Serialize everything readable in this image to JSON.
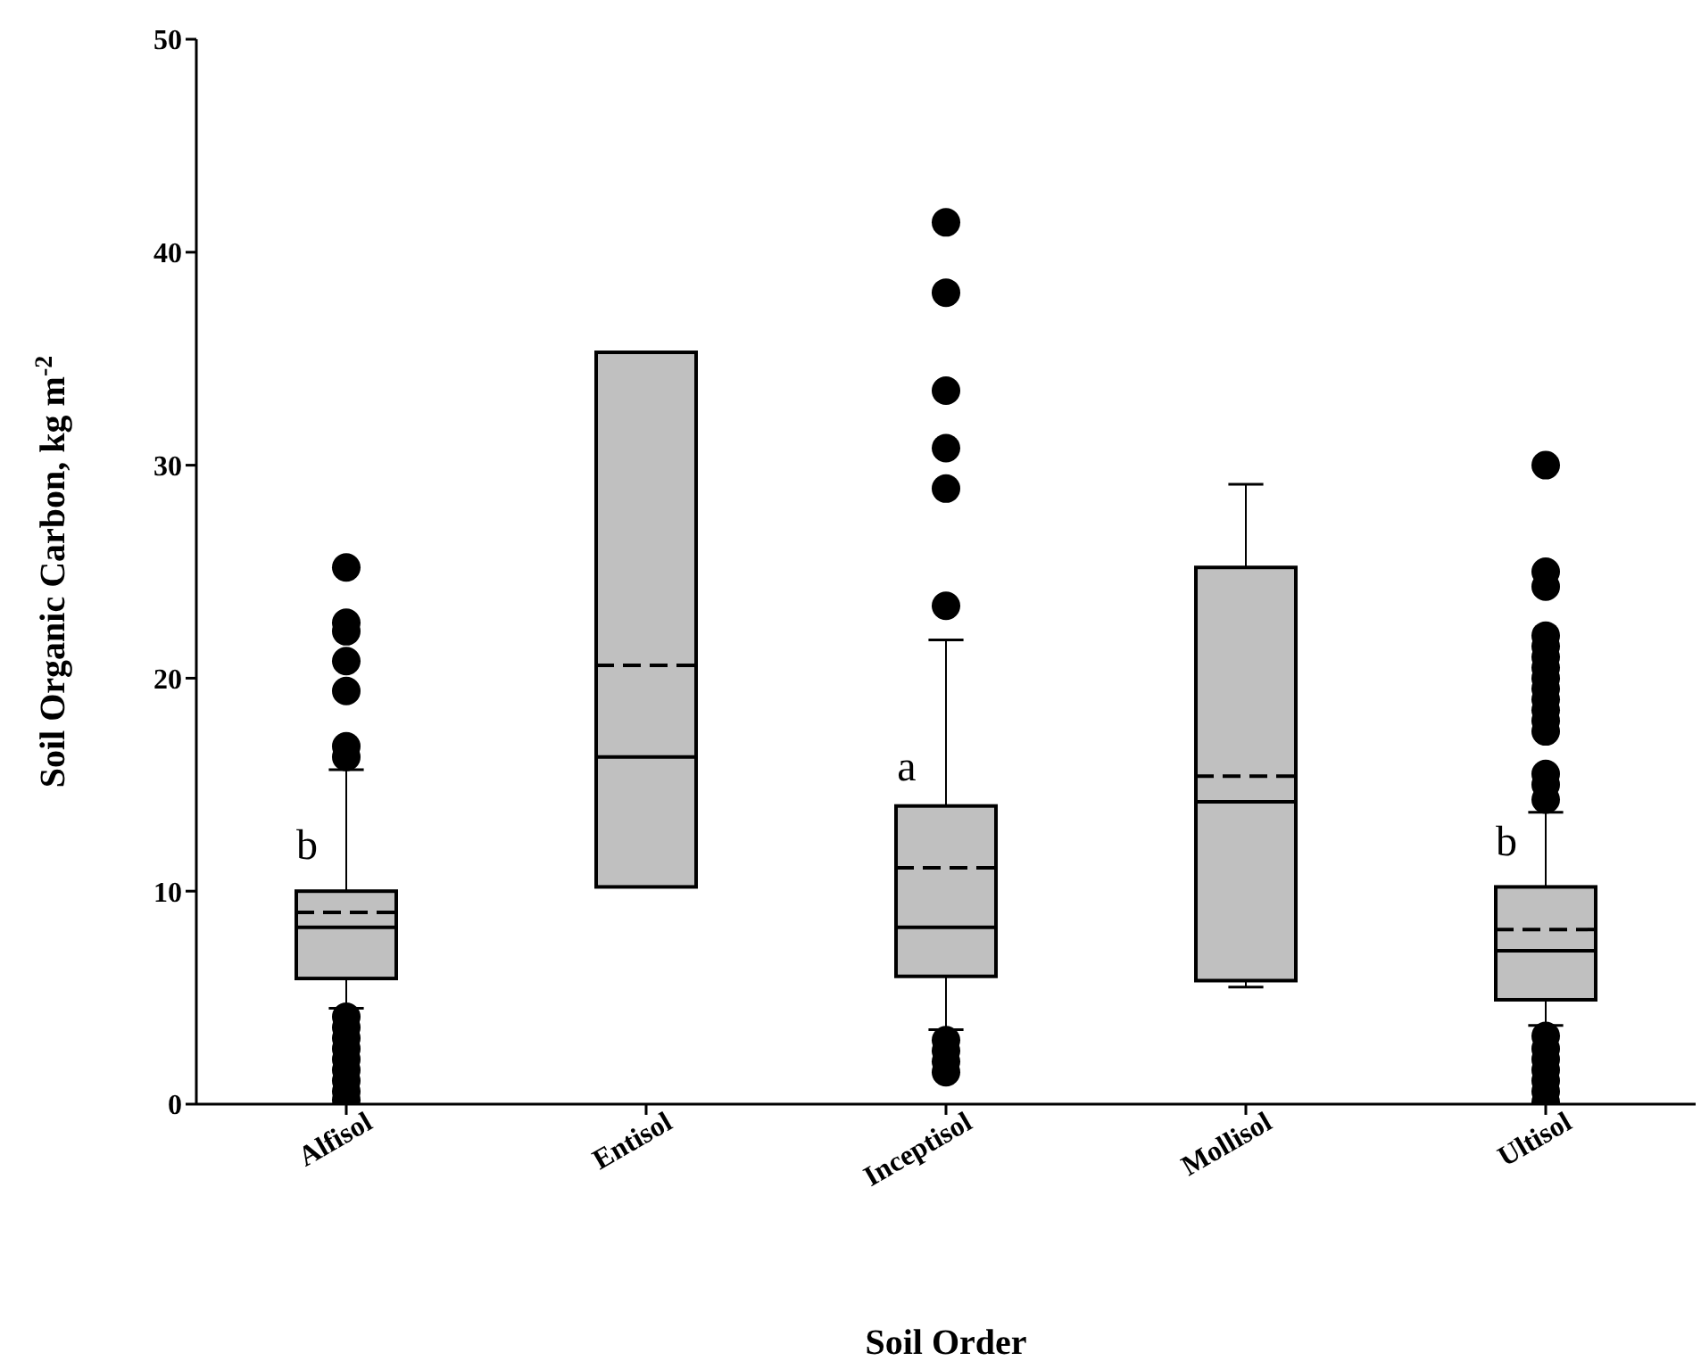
{
  "chart_data": {
    "type": "box",
    "xlabel": "Soil Order",
    "ylabel": "Soil Organic Carbon, kg m$^{-2}$",
    "categories": [
      "Alfisol",
      "Entisol",
      "Inceptisol",
      "Mollisol",
      "Ultisol"
    ],
    "color": "#c0c0c0",
    "boxes": [
      {
        "low": 4.5,
        "q1": 5.9,
        "median": 8.3,
        "q3": 10.0,
        "high": 15.7,
        "mean": 9.0,
        "outliers": [
          25.2,
          22.6,
          22.2,
          20.8,
          19.4,
          16.8,
          16.3,
          4.1,
          3.6,
          3.1,
          2.6,
          2.1,
          1.6,
          1.1,
          0.6,
          0.2
        ]
      },
      {
        "low": 10.2,
        "q1": 10.2,
        "median": 16.3,
        "q3": 35.3,
        "high": 35.3,
        "mean": 20.6
      },
      {
        "low": 3.5,
        "q1": 6.0,
        "median": 8.3,
        "q3": 14.0,
        "high": 21.8,
        "mean": 11.1,
        "outliers": [
          41.4,
          38.1,
          33.5,
          30.8,
          28.9,
          23.4,
          3.0,
          2.5,
          2.0,
          1.5
        ]
      },
      {
        "low": 5.5,
        "q1": 5.8,
        "median": 14.2,
        "q3": 25.2,
        "high": 29.1,
        "mean": 15.4
      },
      {
        "low": 3.7,
        "q1": 4.9,
        "median": 7.2,
        "q3": 10.2,
        "high": 13.7,
        "mean": 8.2,
        "outliers": [
          30.0,
          25.0,
          24.3,
          22.0,
          21.5,
          21.0,
          20.5,
          20.0,
          19.5,
          19.0,
          18.5,
          18.0,
          17.5,
          15.5,
          15.0,
          14.3,
          3.2,
          2.6,
          2.1,
          1.6,
          1.1,
          0.6,
          0.1
        ]
      }
    ],
    "annotations": [
      {
        "text": "b",
        "x": "Alfisol",
        "y": 11.5
      },
      {
        "text": "a",
        "x": "Inceptisol",
        "y": 15.2
      },
      {
        "text": "b",
        "x": "Ultisol",
        "y": 11.7
      }
    ],
    "ylim": [
      0,
      50
    ],
    "yticks": [
      0,
      10,
      20,
      30,
      40,
      50
    ],
    "grid": false,
    "legend": false
  }
}
